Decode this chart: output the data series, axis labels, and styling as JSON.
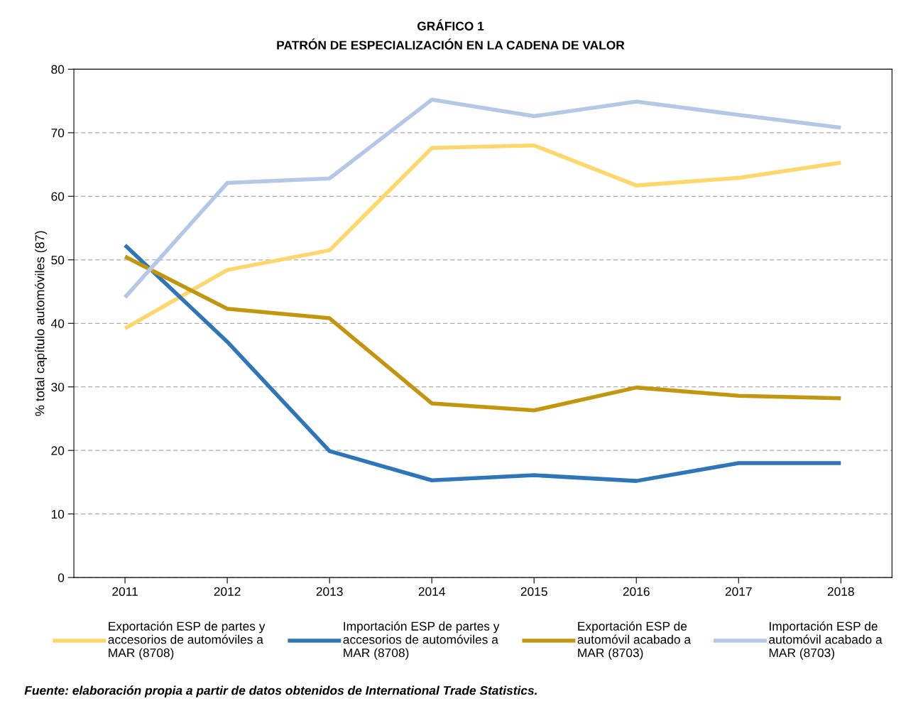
{
  "chart_data": {
    "type": "line",
    "title": "GRÁFICO 1",
    "subtitle": "PATRÓN DE ESPECIALIZACIÓN EN LA CADENA DE VALOR",
    "ylabel": "% total capítulo automóviles (87)",
    "categories": [
      "2011",
      "2012",
      "2013",
      "2014",
      "2015",
      "2016",
      "2017",
      "2018"
    ],
    "series": [
      {
        "name": "Exportación ESP de partes y\naccesorios de automóviles a\nMAR (8708)",
        "color": "#fdd76b",
        "values": [
          39.2,
          48.4,
          51.5,
          67.6,
          68.0,
          61.7,
          62.9,
          65.3
        ]
      },
      {
        "name": "Importación ESP de partes y\naccesorios de automóviles a\nMAR (8708)",
        "color": "#2f75b9",
        "values": [
          52.3,
          37.1,
          19.9,
          15.3,
          16.1,
          15.2,
          18.0,
          18.0
        ]
      },
      {
        "name": "Exportación ESP de\nautomóvil acabado a\nMAR (8703)",
        "color": "#c3960f",
        "values": [
          50.5,
          42.3,
          40.8,
          27.4,
          26.3,
          29.9,
          28.6,
          28.2
        ]
      },
      {
        "name": "Importación ESP de\nautomóvil acabado a\nMAR (8703)",
        "color": "#b4c7e7",
        "values": [
          44.1,
          62.1,
          62.8,
          75.2,
          72.6,
          74.9,
          72.8,
          70.8
        ]
      }
    ],
    "ylim": [
      0,
      80
    ],
    "yticks": [
      0,
      10,
      20,
      30,
      40,
      50,
      60,
      70,
      80
    ],
    "grid": "y",
    "legend": "bottom",
    "marker": "none",
    "line_style": "solid",
    "annotations": [
      "Fuente: elaboración propia a partir de datos obtenidos de International Trade Statistics."
    ]
  }
}
